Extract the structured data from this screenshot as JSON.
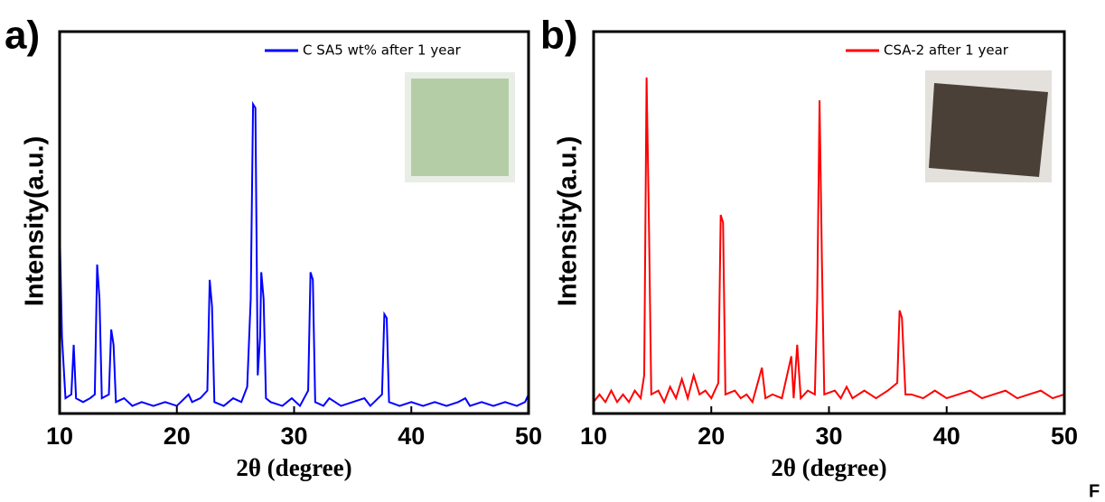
{
  "chart_data": [
    {
      "type": "line",
      "label": "a)",
      "x_label": "2θ (degree)",
      "y_label": "Intensity(a.u.)",
      "xlim": [
        10,
        50
      ],
      "xticks": [
        10,
        20,
        30,
        40,
        50
      ],
      "ylim": [
        0,
        100
      ],
      "series": [
        {
          "name": "C SA5 wt% after 1 year",
          "color": "#0000ff",
          "x": [
            10,
            10.2,
            10.5,
            11.0,
            11.2,
            11.4,
            12,
            12.6,
            13.0,
            13.2,
            13.4,
            13.6,
            14.2,
            14.4,
            14.6,
            14.8,
            15.5,
            16.2,
            17,
            18,
            19,
            20,
            21,
            21.3,
            22,
            22.6,
            22.8,
            23.0,
            23.2,
            24,
            24.8,
            25.5,
            26,
            26.3,
            26.5,
            26.7,
            26.9,
            27.1,
            27.2,
            27.4,
            27.6,
            28,
            29,
            29.8,
            30.5,
            31.2,
            31.4,
            31.6,
            31.8,
            32.5,
            33,
            34,
            35,
            36,
            36.5,
            37.5,
            37.7,
            37.9,
            38.1,
            39,
            40,
            41,
            42,
            43,
            44,
            44.6,
            45,
            46,
            47,
            48,
            49,
            49.7,
            50
          ],
          "values": [
            49,
            20,
            4,
            5,
            18,
            4,
            3,
            4,
            5,
            39,
            30,
            4,
            5,
            22,
            18,
            3,
            4,
            2,
            3,
            2,
            3,
            2,
            5,
            3,
            4,
            6,
            35,
            28,
            3,
            2,
            4,
            3,
            7,
            30,
            81,
            80,
            10,
            20,
            37,
            30,
            4,
            3,
            2,
            4,
            2,
            6,
            37,
            35,
            3,
            2,
            4,
            2,
            3,
            4,
            2,
            5,
            26,
            25,
            3,
            2,
            3,
            2,
            3,
            2,
            3,
            4,
            2,
            3,
            2,
            3,
            2,
            3,
            5
          ]
        }
      ]
    },
    {
      "type": "line",
      "label": "b)",
      "x_label": "2θ (degree)",
      "y_label": "Intensity(a.u.)",
      "xlim": [
        10,
        50
      ],
      "xticks": [
        10,
        20,
        30,
        40,
        50
      ],
      "ylim": [
        0,
        100
      ],
      "series": [
        {
          "name": "CSA-2 after 1 year",
          "color": "#ff0000",
          "x": [
            10,
            10.5,
            11,
            11.5,
            12,
            12.5,
            13,
            13.5,
            14,
            14.3,
            14.5,
            14.7,
            14.9,
            15.5,
            16,
            16.5,
            17,
            17.5,
            18,
            18.5,
            19,
            19.5,
            20,
            20.6,
            20.8,
            21.0,
            21.2,
            22,
            22.5,
            23,
            23.5,
            24.3,
            24.6,
            25.2,
            26,
            26.8,
            27,
            27.3,
            27.6,
            28.2,
            28.8,
            29.0,
            29.2,
            29.4,
            29.6,
            30.5,
            31,
            31.5,
            32,
            33,
            34,
            35,
            35.8,
            36.0,
            36.2,
            36.5,
            37,
            38,
            39,
            40,
            41,
            42,
            43,
            44,
            45,
            46,
            47,
            48,
            49,
            50
          ],
          "values": [
            3,
            5,
            3,
            6,
            3,
            5,
            3,
            6,
            4,
            10,
            88,
            50,
            5,
            6,
            3,
            7,
            4,
            9,
            4,
            10,
            5,
            6,
            4,
            8,
            52,
            50,
            5,
            6,
            4,
            5,
            3,
            12,
            4,
            5,
            4,
            15,
            4,
            18,
            4,
            6,
            5,
            30,
            82,
            40,
            5,
            6,
            4,
            7,
            4,
            6,
            4,
            6,
            8,
            27,
            25,
            5,
            5,
            4,
            6,
            4,
            5,
            6,
            4,
            5,
            6,
            4,
            5,
            6,
            4,
            5
          ]
        }
      ]
    }
  ],
  "corner_text": "F"
}
